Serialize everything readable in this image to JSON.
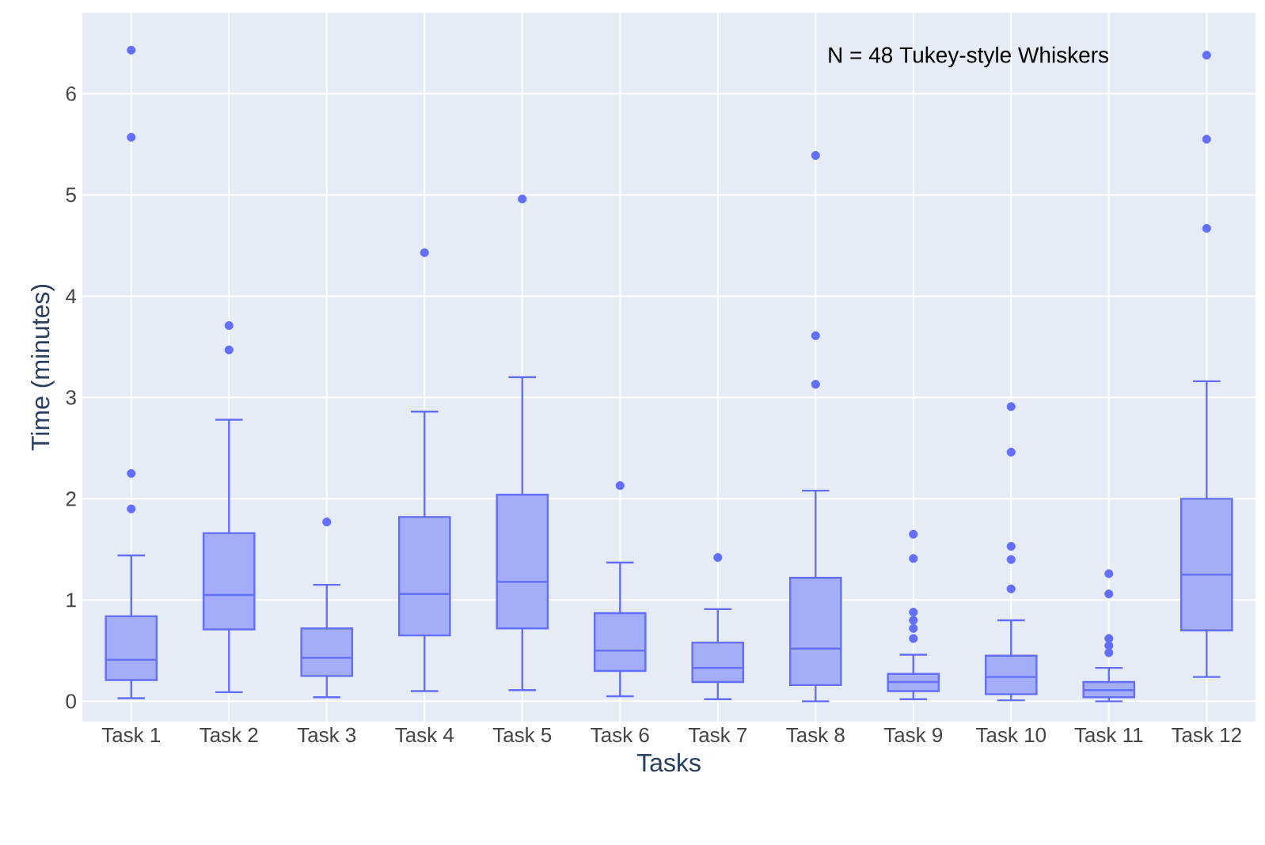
{
  "chart_data": {
    "type": "box",
    "xlabel": "Tasks",
    "ylabel": "Time (minutes)",
    "annotations": [
      "N = 48 Tukey-style Whiskers"
    ],
    "categories": [
      "Task 1",
      "Task 2",
      "Task 3",
      "Task 4",
      "Task 5",
      "Task 6",
      "Task 7",
      "Task 8",
      "Task 9",
      "Task 10",
      "Task 11",
      "Task 12"
    ],
    "color": "#636efa",
    "ylim": [
      -0.2,
      6.8
    ],
    "yticks": [
      0,
      1,
      2,
      3,
      4,
      5,
      6
    ],
    "grid": true,
    "boxes": [
      {
        "low": 0.03,
        "q1": 0.21,
        "median": 0.41,
        "q3": 0.84,
        "high": 1.44,
        "outliers": [
          1.9,
          2.25,
          5.57,
          6.43
        ]
      },
      {
        "low": 0.09,
        "q1": 0.71,
        "median": 1.05,
        "q3": 1.66,
        "high": 2.78,
        "outliers": [
          3.47,
          3.71
        ]
      },
      {
        "low": 0.04,
        "q1": 0.25,
        "median": 0.43,
        "q3": 0.72,
        "high": 1.15,
        "outliers": [
          1.77
        ]
      },
      {
        "low": 0.1,
        "q1": 0.65,
        "median": 1.06,
        "q3": 1.82,
        "high": 2.86,
        "outliers": [
          4.43
        ]
      },
      {
        "low": 0.11,
        "q1": 0.72,
        "median": 1.18,
        "q3": 2.04,
        "high": 3.2,
        "outliers": [
          4.96
        ]
      },
      {
        "low": 0.05,
        "q1": 0.3,
        "median": 0.5,
        "q3": 0.87,
        "high": 1.37,
        "outliers": [
          2.13
        ]
      },
      {
        "low": 0.02,
        "q1": 0.19,
        "median": 0.33,
        "q3": 0.58,
        "high": 0.91,
        "outliers": [
          1.42
        ]
      },
      {
        "low": 0.0,
        "q1": 0.16,
        "median": 0.52,
        "q3": 1.22,
        "high": 2.08,
        "outliers": [
          3.13,
          3.61,
          5.39
        ]
      },
      {
        "low": 0.02,
        "q1": 0.1,
        "median": 0.19,
        "q3": 0.27,
        "high": 0.46,
        "outliers": [
          0.62,
          0.72,
          0.8,
          0.88,
          1.41,
          1.65
        ]
      },
      {
        "low": 0.01,
        "q1": 0.07,
        "median": 0.24,
        "q3": 0.45,
        "high": 0.8,
        "outliers": [
          1.11,
          1.4,
          1.53,
          2.46,
          2.91
        ]
      },
      {
        "low": 0.0,
        "q1": 0.04,
        "median": 0.11,
        "q3": 0.19,
        "high": 0.33,
        "outliers": [
          0.48,
          0.55,
          0.62,
          1.06,
          1.26
        ]
      },
      {
        "low": 0.24,
        "q1": 0.7,
        "median": 1.25,
        "q3": 2.0,
        "high": 3.16,
        "outliers": [
          4.67,
          5.55,
          6.38
        ]
      }
    ]
  }
}
